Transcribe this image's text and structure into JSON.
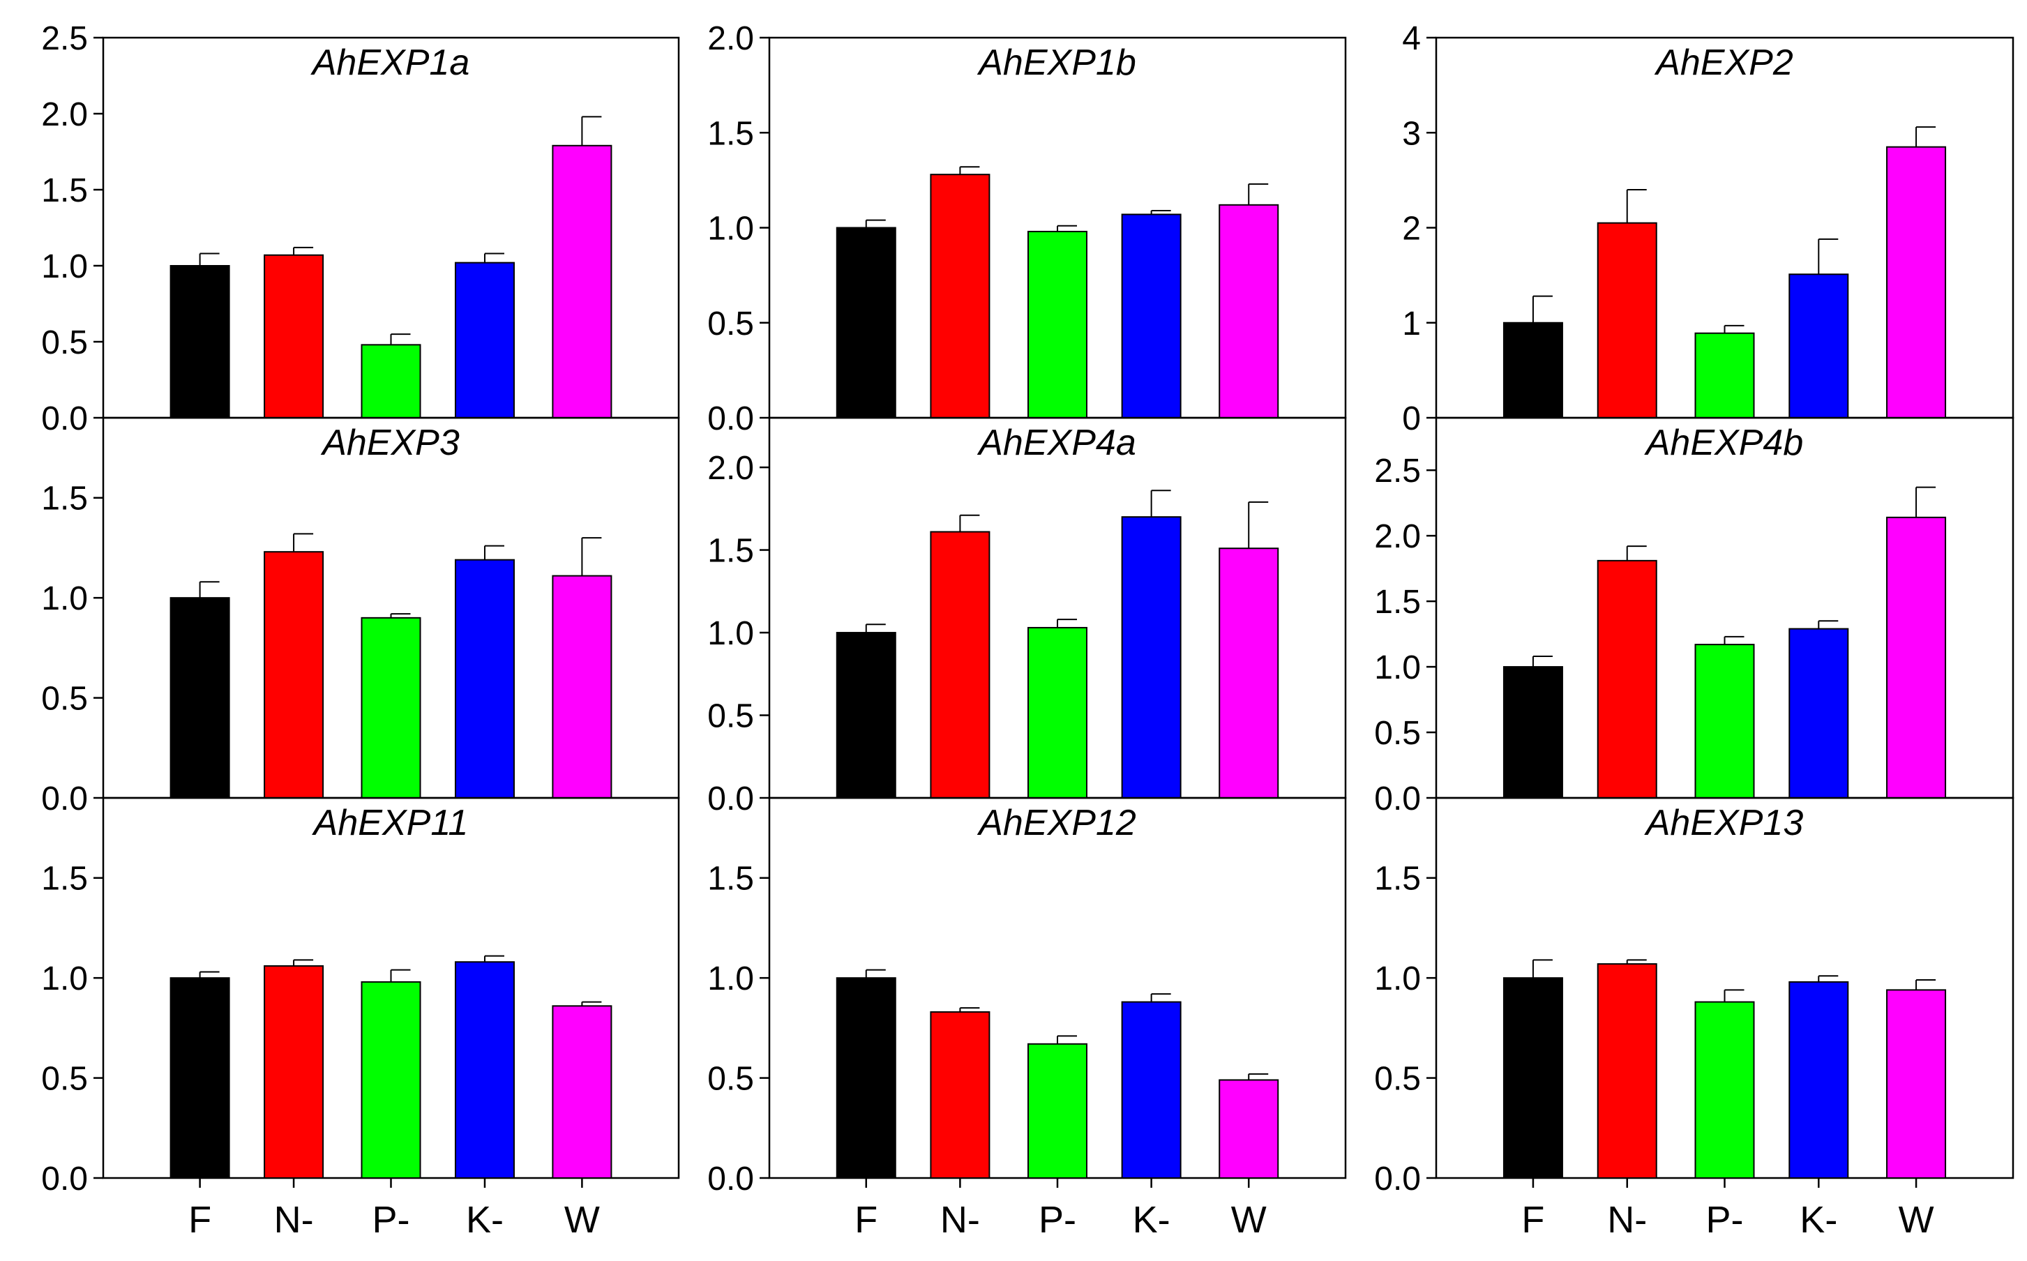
{
  "chart_data": {
    "type": "bar",
    "layout": "3x3 grid of panels",
    "categories": [
      "F",
      "N-",
      "P-",
      "K-",
      "W"
    ],
    "bar_colors": [
      "#000000",
      "#ff0000",
      "#00ff00",
      "#0000ff",
      "#ff00ff"
    ],
    "panels": [
      {
        "title": "AhEXP1a",
        "ylim": [
          0,
          2.5
        ],
        "yticks": [
          "0.0",
          "0.5",
          "1.0",
          "1.5",
          "2.0",
          "2.5"
        ],
        "tick_values": [
          0,
          0.5,
          1.0,
          1.5,
          2.0,
          2.5
        ],
        "values": [
          1.0,
          1.07,
          0.48,
          1.02,
          1.79
        ],
        "errors": [
          0.08,
          0.05,
          0.07,
          0.06,
          0.19
        ]
      },
      {
        "title": "AhEXP1b",
        "ylim": [
          0,
          2.0
        ],
        "yticks": [
          "0.0",
          "0.5",
          "1.0",
          "1.5",
          "2.0"
        ],
        "tick_values": [
          0,
          0.5,
          1.0,
          1.5,
          2.0
        ],
        "values": [
          1.0,
          1.28,
          0.98,
          1.07,
          1.12
        ],
        "errors": [
          0.04,
          0.04,
          0.03,
          0.02,
          0.11
        ]
      },
      {
        "title": "AhEXP2",
        "ylim": [
          0,
          4
        ],
        "yticks": [
          "0",
          "1",
          "2",
          "3",
          "4"
        ],
        "tick_values": [
          0,
          1,
          2,
          3,
          4
        ],
        "values": [
          1.0,
          2.05,
          0.89,
          1.51,
          2.85
        ],
        "errors": [
          0.28,
          0.35,
          0.08,
          0.37,
          0.21
        ]
      },
      {
        "title": "AhEXP3",
        "ylim": [
          0,
          1.9
        ],
        "yticks": [
          "0.0",
          "0.5",
          "1.0",
          "1.5"
        ],
        "tick_values": [
          0,
          0.5,
          1.0,
          1.5
        ],
        "values": [
          1.0,
          1.23,
          0.9,
          1.19,
          1.11
        ],
        "errors": [
          0.08,
          0.09,
          0.02,
          0.07,
          0.19
        ]
      },
      {
        "title": "AhEXP4a",
        "ylim": [
          0,
          2.3
        ],
        "yticks": [
          "0.0",
          "0.5",
          "1.0",
          "1.5",
          "2.0"
        ],
        "tick_values": [
          0,
          0.5,
          1.0,
          1.5,
          2.0
        ],
        "values": [
          1.0,
          1.61,
          1.03,
          1.7,
          1.51
        ],
        "errors": [
          0.05,
          0.1,
          0.05,
          0.16,
          0.28
        ]
      },
      {
        "title": "AhEXP4b",
        "ylim": [
          0,
          2.9
        ],
        "yticks": [
          "0.0",
          "0.5",
          "1.0",
          "1.5",
          "2.0",
          "2.5"
        ],
        "tick_values": [
          0,
          0.5,
          1.0,
          1.5,
          2.0,
          2.5
        ],
        "values": [
          1.0,
          1.81,
          1.17,
          1.29,
          2.14
        ],
        "errors": [
          0.08,
          0.11,
          0.06,
          0.06,
          0.23
        ]
      },
      {
        "title": "AhEXP11",
        "ylim": [
          0,
          1.9
        ],
        "yticks": [
          "0.0",
          "0.5",
          "1.0",
          "1.5"
        ],
        "tick_values": [
          0,
          0.5,
          1.0,
          1.5
        ],
        "values": [
          1.0,
          1.06,
          0.98,
          1.08,
          0.86
        ],
        "errors": [
          0.03,
          0.03,
          0.06,
          0.03,
          0.02
        ]
      },
      {
        "title": "AhEXP12",
        "ylim": [
          0,
          1.9
        ],
        "yticks": [
          "0.0",
          "0.5",
          "1.0",
          "1.5"
        ],
        "tick_values": [
          0,
          0.5,
          1.0,
          1.5
        ],
        "values": [
          1.0,
          0.83,
          0.67,
          0.88,
          0.49
        ],
        "errors": [
          0.04,
          0.02,
          0.04,
          0.04,
          0.03
        ]
      },
      {
        "title": "AhEXP13",
        "ylim": [
          0,
          1.9
        ],
        "yticks": [
          "0.0",
          "0.5",
          "1.0",
          "1.5"
        ],
        "tick_values": [
          0,
          0.5,
          1.0,
          1.5
        ],
        "values": [
          1.0,
          1.07,
          0.88,
          0.98,
          0.94
        ],
        "errors": [
          0.09,
          0.02,
          0.06,
          0.03,
          0.05
        ]
      }
    ]
  }
}
